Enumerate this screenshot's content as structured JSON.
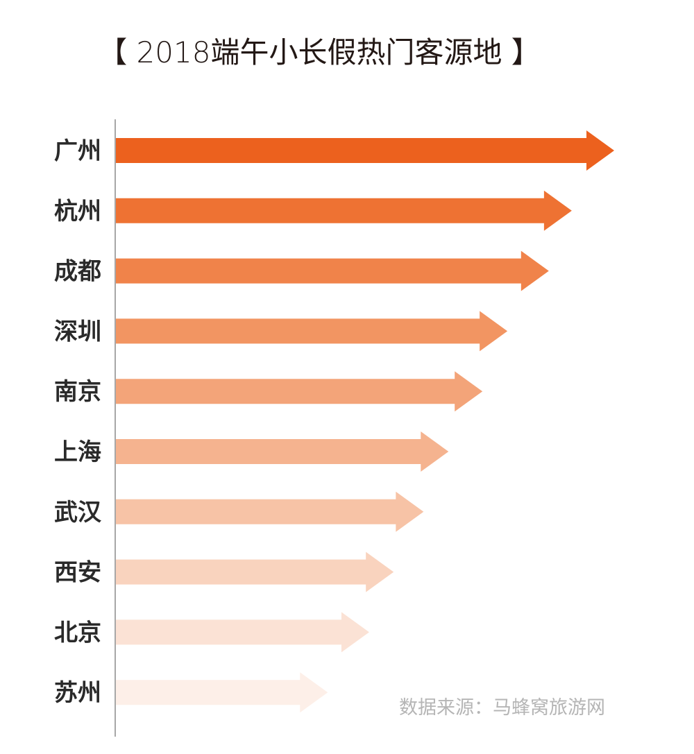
{
  "chart_data": {
    "type": "bar",
    "orientation": "horizontal",
    "title": "【 2018端午小长假热门客源地 】",
    "categories": [
      "广州",
      "杭州",
      "成都",
      "深圳",
      "南京",
      "上海",
      "武汉",
      "西安",
      "北京",
      "苏州"
    ],
    "values": [
      100,
      91.5,
      86.9,
      78.6,
      73.6,
      66.8,
      61.8,
      55.8,
      50.9,
      42.6
    ],
    "value_note": "relative, no axis printed",
    "colors": [
      "#EC611E",
      "#EE7233",
      "#F0834A",
      "#F29562",
      "#F3A479",
      "#F5B38F",
      "#F7C3A6",
      "#F9D3BE",
      "#FBE2D5",
      "#FDEFE8"
    ],
    "axis_color": "#8a8a8a",
    "grid": false,
    "legend": "none",
    "mark": "arrow"
  },
  "source": "数据来源：马蜂窝旅游网"
}
